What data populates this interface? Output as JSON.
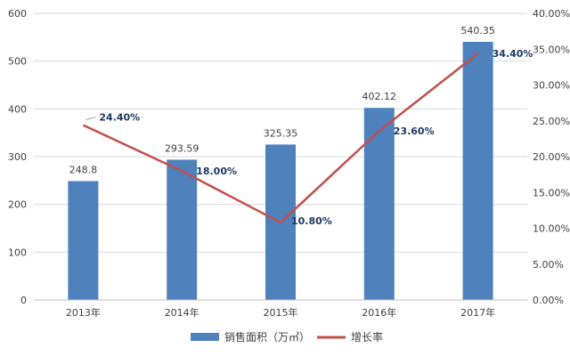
{
  "chart_data": {
    "type": "bar",
    "categories": [
      "2013年",
      "2014年",
      "2015年",
      "2016年",
      "2017年"
    ],
    "series": [
      {
        "name": "销售面积（万㎡）",
        "type": "bar",
        "axis": "left",
        "values": [
          248.8,
          293.59,
          325.35,
          402.12,
          540.35
        ],
        "labels": [
          "248.8",
          "293.59",
          "325.35",
          "402.12",
          "540.35"
        ],
        "color": "#4f81bd"
      },
      {
        "name": "增长率",
        "type": "line",
        "axis": "right",
        "values": [
          24.4,
          18.0,
          10.8,
          23.6,
          34.4
        ],
        "labels": [
          "24.40%",
          "18.00%",
          "10.80%",
          "23.60%",
          "34.40%"
        ],
        "color": "#c0504d"
      }
    ],
    "y_left": {
      "lim": [
        0,
        600
      ],
      "ticks": [
        "0",
        "100",
        "200",
        "300",
        "400",
        "500",
        "600"
      ]
    },
    "y_right": {
      "lim": [
        0,
        40
      ],
      "ticks": [
        "0.00%",
        "5.00%",
        "10.00%",
        "15.00%",
        "20.00%",
        "25.00%",
        "30.00%",
        "35.00%",
        "40.00%"
      ]
    },
    "grid": true,
    "legend": "bottom",
    "colors": {
      "grid": "#d9d9d9",
      "axis_text": "#404040",
      "bar_label": "#404040",
      "line_label": "#1f3864"
    }
  }
}
